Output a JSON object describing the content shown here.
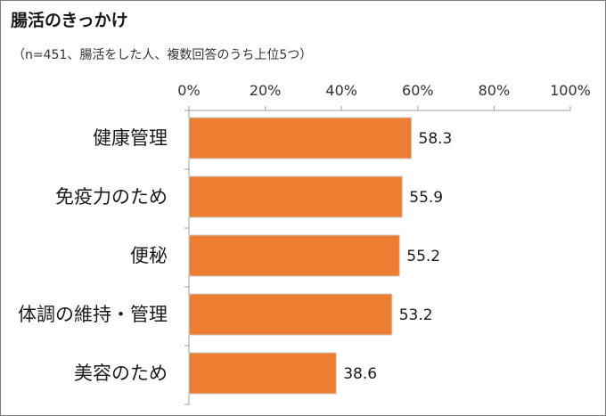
{
  "title": "腸活のきっかけ",
  "subtitle": "（n=451、腸活をした人、複数回答のうち上位5つ）",
  "colors": {
    "bar": "#ED7D31",
    "bar_stroke": "#c8c8c8",
    "axis": "#a0a0a0",
    "border": "#7f7f7f"
  },
  "chart_data": {
    "type": "bar",
    "orientation": "horizontal",
    "title": "腸活のきっかけ",
    "subtitle": "（n=451、腸活をした人、複数回答のうち上位5つ）",
    "categories": [
      "健康管理",
      "免疫力のため",
      "便秘",
      "体調の維持・管理",
      "美容のため"
    ],
    "values": [
      58.3,
      55.9,
      55.2,
      53.2,
      38.6
    ],
    "value_labels": [
      "58.3",
      "55.9",
      "55.2",
      "53.2",
      "38.6"
    ],
    "xlim": [
      0,
      100
    ],
    "xticks": [
      0,
      20,
      40,
      60,
      80,
      100
    ],
    "xtick_labels": [
      "0%",
      "20%",
      "40%",
      "60%",
      "80%",
      "100%"
    ],
    "axis_position": "top",
    "grid": false,
    "legend": "none",
    "xlabel": "",
    "ylabel": ""
  }
}
